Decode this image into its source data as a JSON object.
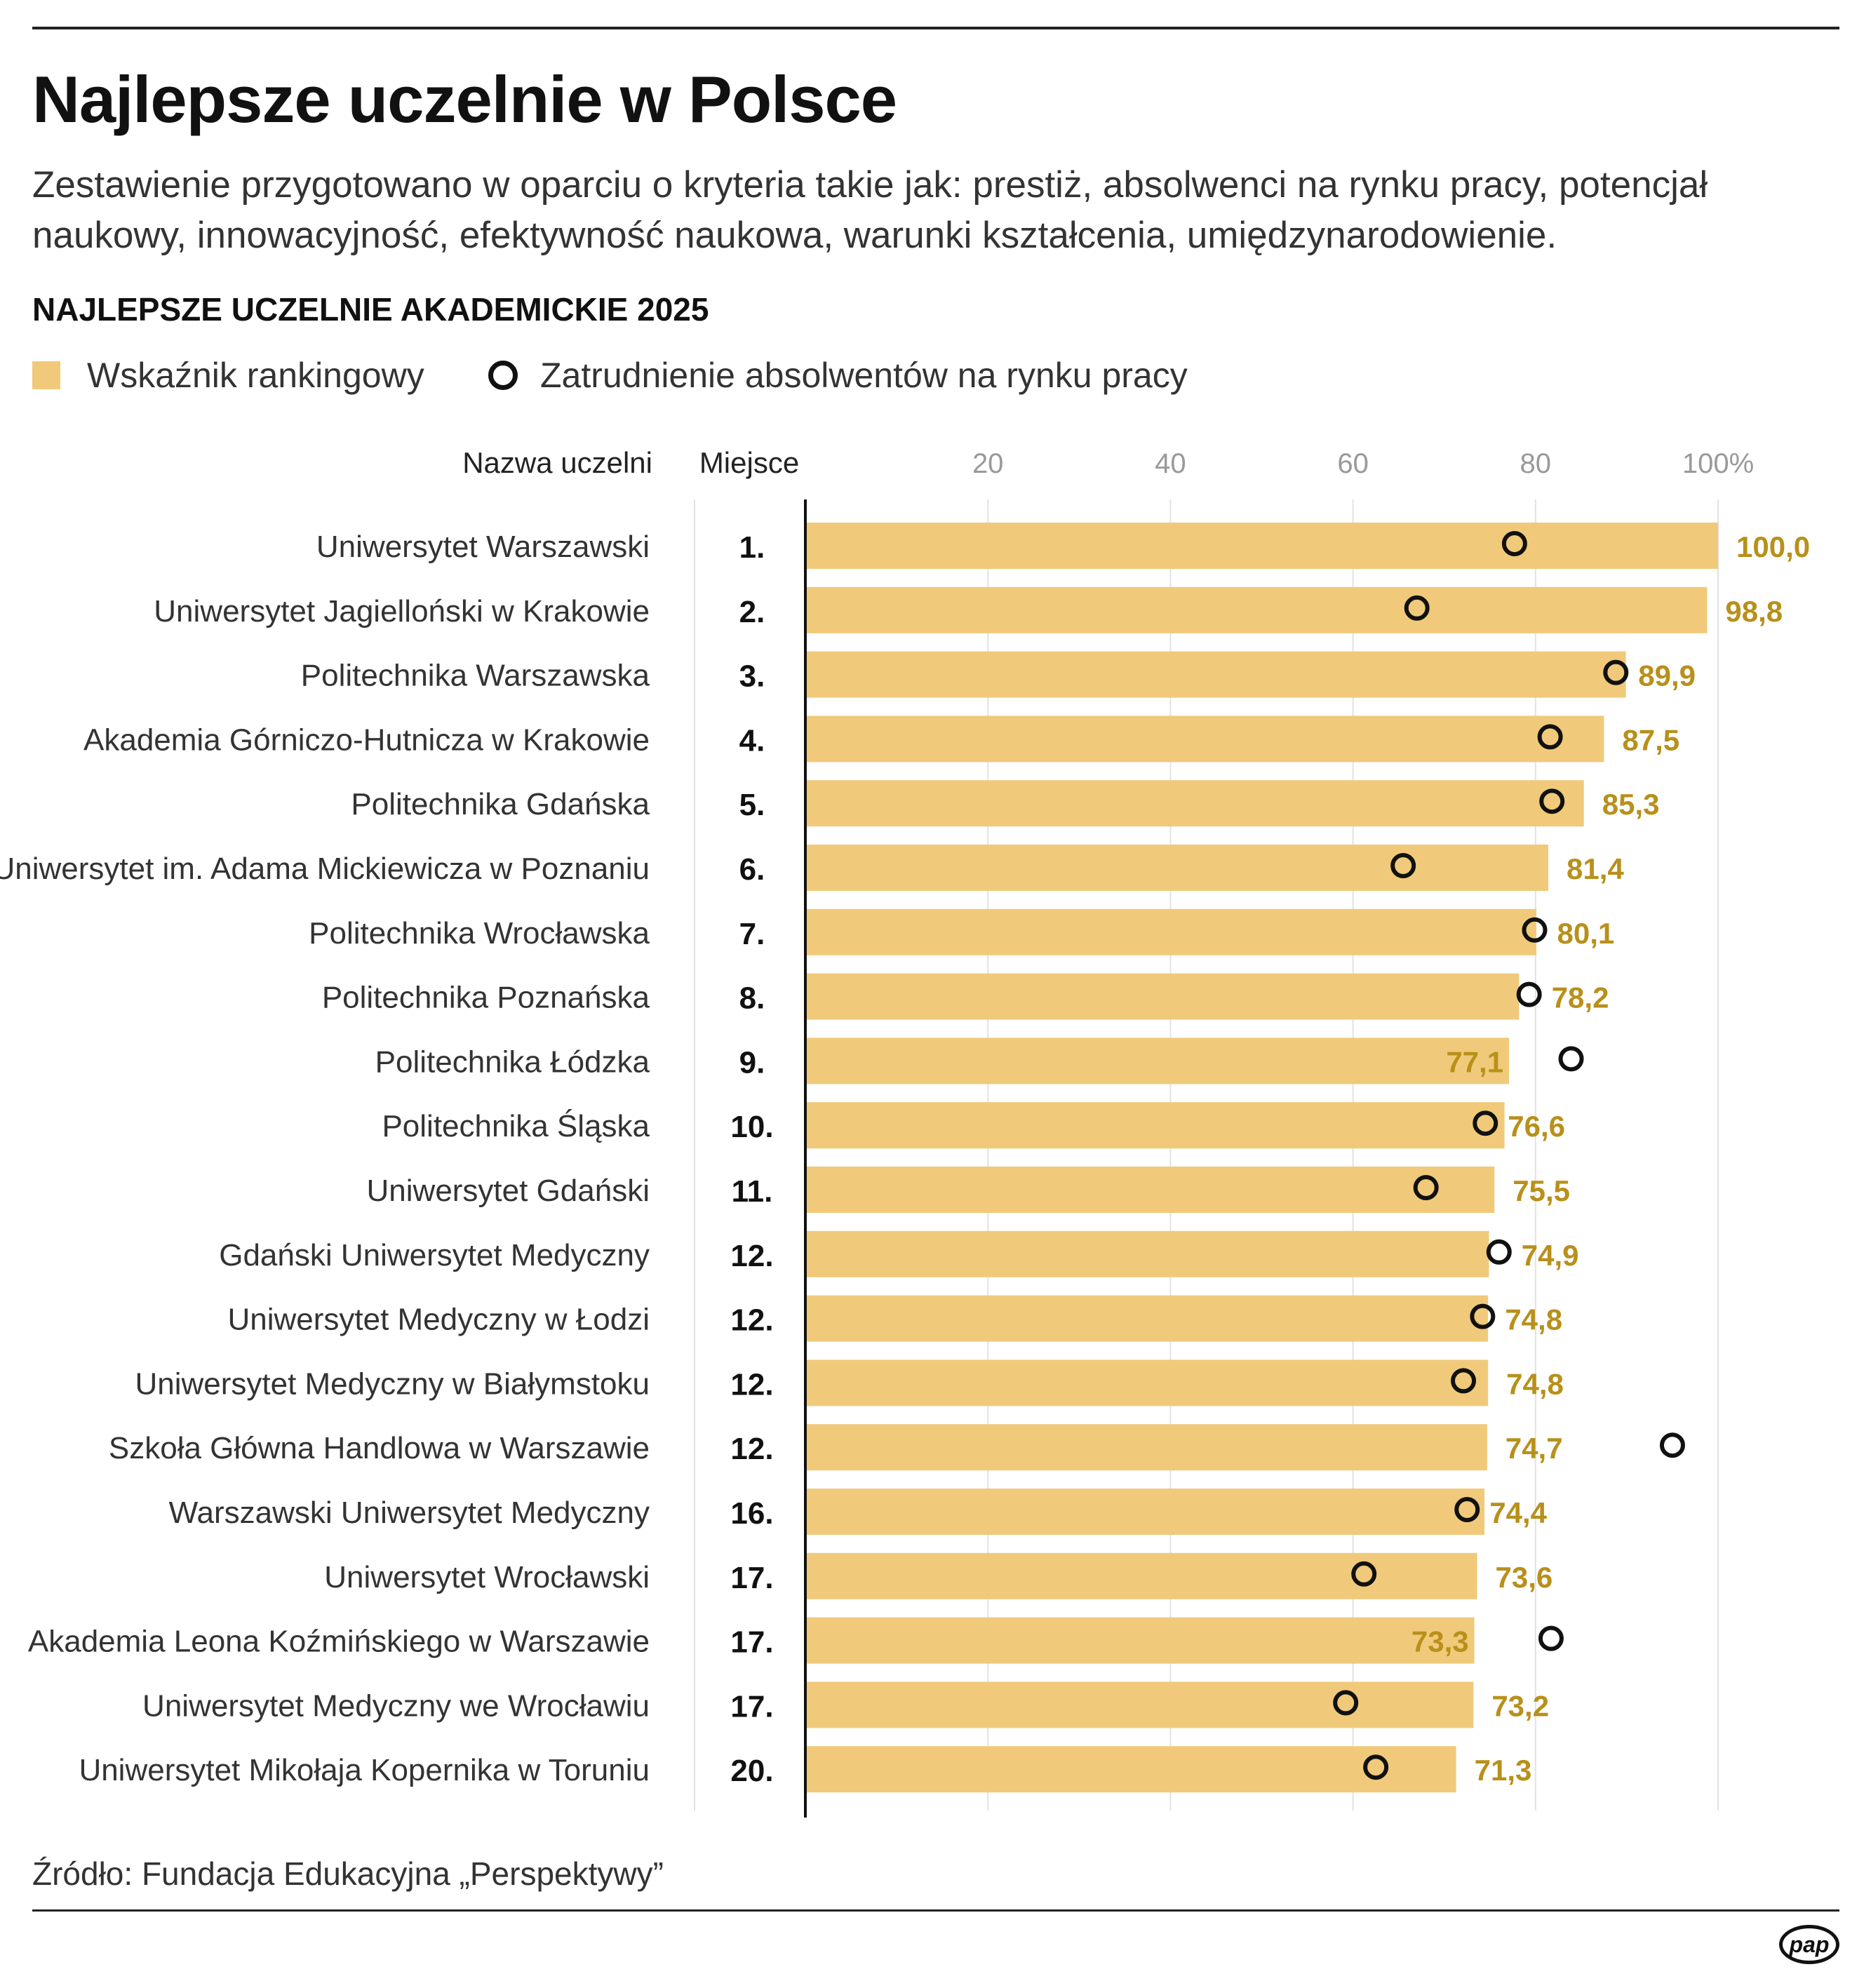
{
  "title": "Najlepsze uczelnie w Polsce",
  "subtitle": "Zestawienie przygotowano w oparciu o kryteria takie jak: prestiż, absolwenci na rynku pracy, potencjał naukowy, innowacyjność, efektywność naukowa, warunki kształcenia, umiędzynarodowienie.",
  "section_title": "NAJLEPSZE UCZELNIE AKADEMICKIE 2025",
  "legend": {
    "bar_label": "Wskaźnik rankingowy",
    "circle_label": "Zatrudnienie absolwentów na rynku pracy"
  },
  "source": "Źródło: Fundacja Edukacyjna „Perspektywy”",
  "logo": "pap",
  "colors": {
    "bar": "#f0ca7a",
    "value_label": "#b8901a",
    "circle": "#111111",
    "grid": "#e2e2e2",
    "axis": "#111111"
  },
  "chart_data": {
    "type": "bar",
    "orientation": "horizontal",
    "columns": {
      "name": "Nazwa uczelni",
      "rank": "Miejsce"
    },
    "xlim": [
      0,
      100
    ],
    "ticks": [
      "20",
      "40",
      "60",
      "80",
      "100%"
    ],
    "tick_values": [
      20,
      40,
      60,
      80,
      100
    ],
    "grid": true,
    "categories": [
      "Uniwersytet Warszawski",
      "Uniwersytet Jagielloński w Krakowie",
      "Politechnika Warszawska",
      "Akademia Górniczo-Hutnicza w Krakowie",
      "Politechnika Gdańska",
      "Uniwersytet im. Adama Mickiewicza w Poznaniu",
      "Politechnika Wrocławska",
      "Politechnika Poznańska",
      "Politechnika Łódzka",
      "Politechnika Śląska",
      "Uniwersytet Gdański",
      "Gdański Uniwersytet Medyczny",
      "Uniwersytet Medyczny w Łodzi",
      "Uniwersytet Medyczny w Białymstoku",
      "Szkoła Główna Handlowa w Warszawie",
      "Warszawski Uniwersytet Medyczny",
      "Uniwersytet Wrocławski",
      "Akademia Leona Koźmińskiego w Warszawie",
      "Uniwersytet Medyczny we Wrocławiu",
      "Uniwersytet Mikołaja Kopernika w Toruniu"
    ],
    "ranks": [
      "1.",
      "2.",
      "3.",
      "4.",
      "5.",
      "6.",
      "7.",
      "8.",
      "9.",
      "10.",
      "11.",
      "12.",
      "12.",
      "12.",
      "12.",
      "16.",
      "17.",
      "17.",
      "17.",
      "20."
    ],
    "series": [
      {
        "name": "Wskaźnik rankingowy",
        "values": [
          100.0,
          98.8,
          89.9,
          87.5,
          85.3,
          81.4,
          80.1,
          78.2,
          77.1,
          76.6,
          75.5,
          74.9,
          74.8,
          74.8,
          74.7,
          74.4,
          73.6,
          73.3,
          73.2,
          71.3
        ],
        "labels": [
          "100,0",
          "98,8",
          "89,9",
          "87,5",
          "85,3",
          "81,4",
          "80,1",
          "78,2",
          "77,1",
          "76,6",
          "75,5",
          "74,9",
          "74,8",
          "74,8",
          "74,7",
          "74,4",
          "73,6",
          "73,3",
          "73,2",
          "71,3"
        ]
      },
      {
        "name": "Zatrudnienie absolwentów na rynku pracy",
        "values": [
          77.7,
          67.0,
          88.8,
          81.6,
          81.8,
          65.5,
          79.9,
          79.3,
          83.9,
          74.5,
          68.0,
          76.0,
          74.2,
          72.1,
          95.0,
          72.5,
          61.2,
          81.7,
          59.2,
          62.5
        ]
      }
    ]
  }
}
